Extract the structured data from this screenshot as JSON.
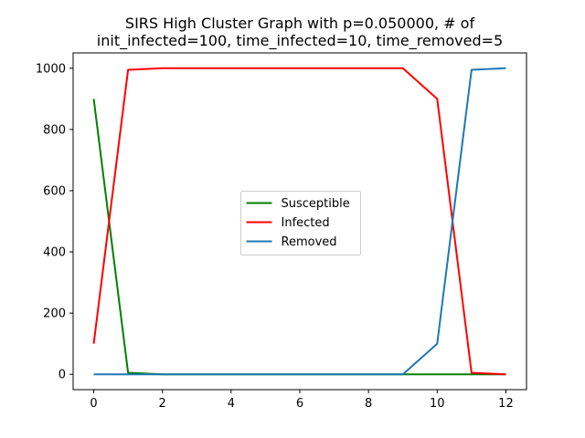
{
  "chart_data": {
    "type": "line",
    "title_line1": "SIRS High Cluster Graph with p=0.050000, # of",
    "title_line2": "init_infected=100, time_infected=10, time_removed=5",
    "xlabel": "",
    "ylabel": "",
    "x": [
      0,
      1,
      2,
      3,
      4,
      5,
      6,
      7,
      8,
      9,
      10,
      11,
      12
    ],
    "xlim": [
      -0.6,
      12.6
    ],
    "ylim": [
      -50,
      1050
    ],
    "xticks": [
      0,
      2,
      4,
      6,
      8,
      10,
      12
    ],
    "yticks": [
      0,
      200,
      400,
      600,
      800,
      1000
    ],
    "grid": false,
    "legend_position": "center",
    "series": [
      {
        "name": "Susceptible",
        "color": "#008000",
        "values": [
          900,
          5,
          0,
          0,
          0,
          0,
          0,
          0,
          0,
          0,
          0,
          0,
          0
        ]
      },
      {
        "name": "Infected",
        "color": "#ff0000",
        "values": [
          100,
          995,
          1000,
          1000,
          1000,
          1000,
          1000,
          1000,
          1000,
          1000,
          900,
          5,
          0
        ]
      },
      {
        "name": "Removed",
        "color": "#1f77b4",
        "values": [
          0,
          0,
          0,
          0,
          0,
          0,
          0,
          0,
          0,
          0,
          100,
          995,
          1000
        ]
      }
    ]
  }
}
